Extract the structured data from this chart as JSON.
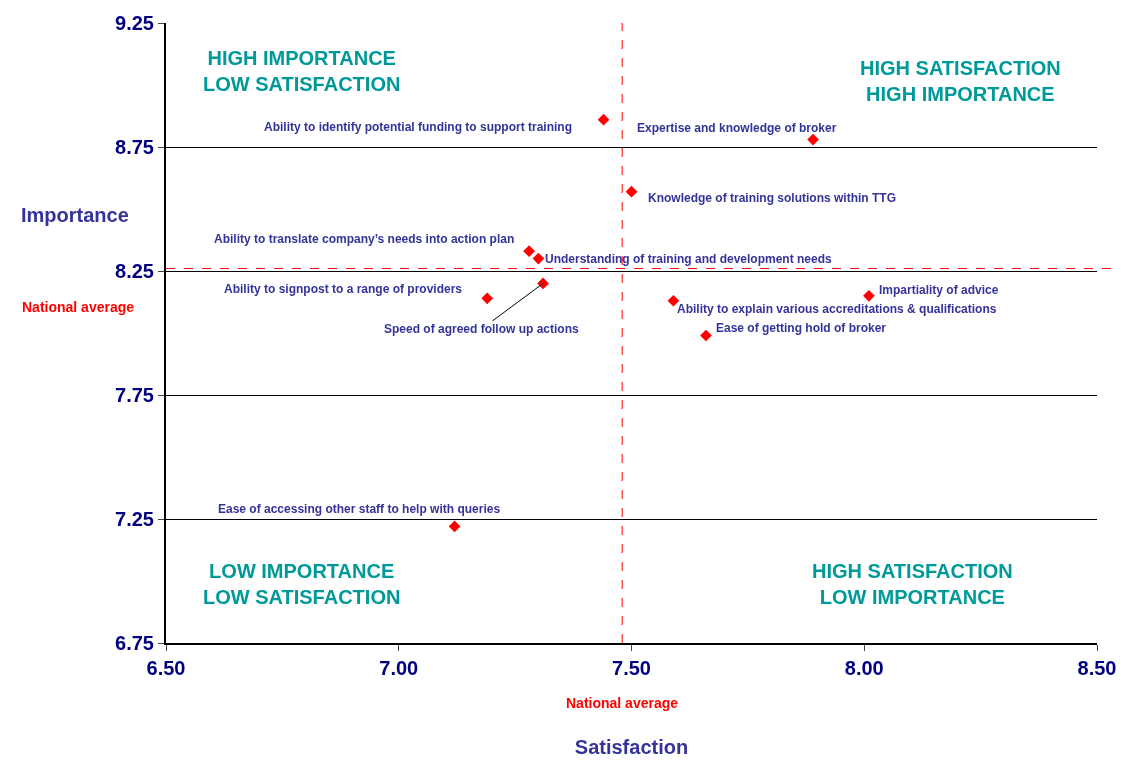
{
  "chart_data": {
    "type": "scatter",
    "xlabel": "Satisfaction",
    "ylabel": "Importance",
    "x": [
      7.44,
      7.89,
      7.5,
      7.28,
      7.3,
      7.19,
      7.31,
      7.59,
      8.01,
      7.66,
      7.12
    ],
    "series": [
      {
        "color": "#ff0000",
        "values": [
          8.86,
          8.78,
          8.57,
          8.33,
          8.3,
          8.14,
          8.2,
          8.13,
          8.15,
          7.99,
          7.22
        ]
      }
    ],
    "marker": "diamond",
    "xlim": [
      6.5,
      8.5
    ],
    "xticks": [
      {
        "value": 6.5,
        "label": "6.50"
      },
      {
        "value": 7,
        "label": "7.00"
      },
      {
        "value": 7.5,
        "label": "7.50"
      },
      {
        "value": 8,
        "label": "8.00"
      },
      {
        "value": 8.5,
        "label": "8.50"
      }
    ],
    "ylim": [
      6.75,
      9.25
    ],
    "yticks": [
      6.75,
      7.25,
      7.75,
      8.25,
      8.75,
      9.25
    ],
    "grid": "y",
    "ref_lines": [
      {
        "axis": "x",
        "value": 7.48,
        "label": "National average",
        "color": "#ff0000",
        "line_style": "dashed"
      },
      {
        "axis": "y",
        "value": 8.26,
        "label": "National average",
        "color": "#ff0000",
        "line_style": "dashed"
      }
    ],
    "annotations": [
      {
        "text": "Ability to identify potential funding to support training",
        "x": 7.44,
        "y": 8.86
      },
      {
        "text": "Expertise and knowledge of broker",
        "x": 7.89,
        "y": 8.78
      },
      {
        "text": "Knowledge of training solutions within TTG",
        "x": 7.5,
        "y": 8.57
      },
      {
        "text": "Ability to translate company’s needs into action plan",
        "x": 7.28,
        "y": 8.33
      },
      {
        "text": "Understanding of training and development needs",
        "x": 7.3,
        "y": 8.3
      },
      {
        "text": "Ability to signpost to a range of providers",
        "x": 7.19,
        "y": 8.14
      },
      {
        "text": "Speed of agreed follow up actions",
        "x": 7.31,
        "y": 8.2
      },
      {
        "text": "Ability to explain various accreditations & qualifications",
        "x": 7.59,
        "y": 8.13
      },
      {
        "text": "Impartiality of advice",
        "x": 8.01,
        "y": 8.15
      },
      {
        "text": "Ease of getting hold of broker",
        "x": 7.66,
        "y": 7.99
      },
      {
        "text": "Ease of accessing other staff to help with queries",
        "x": 7.12,
        "y": 7.22
      },
      "HIGH IMPORTANCE\nLOW SATISFACTION",
      "HIGH SATISFACTION\nHIGH IMPORTANCE",
      "LOW IMPORTANCE\nLOW SATISFACTION",
      "HIGH SATISFACTION\nLOW IMPORTANCE"
    ]
  }
}
